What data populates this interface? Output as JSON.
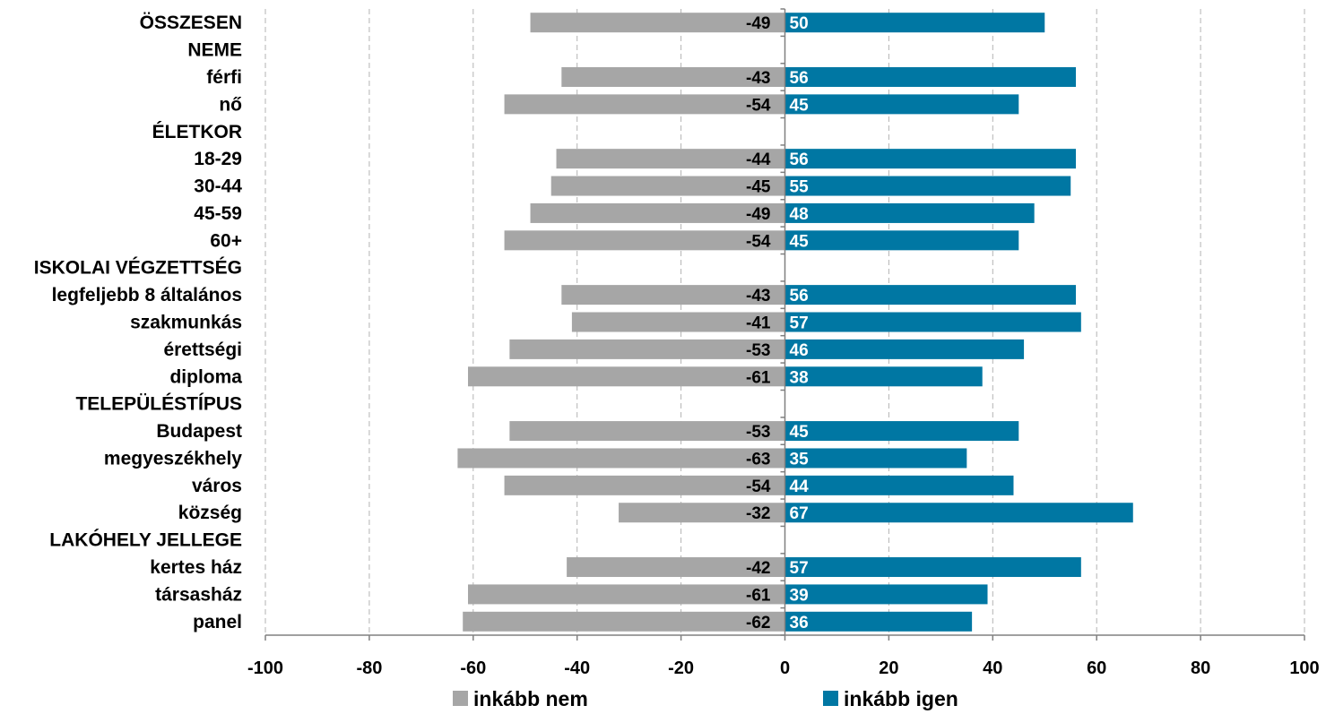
{
  "chart_data": {
    "type": "bar",
    "orientation": "horizontal",
    "categories": [
      "ÖSSZESEN",
      "NEME",
      "férfi",
      "nő",
      "ÉLETKOR",
      "18-29",
      "30-44",
      "45-59",
      "60+",
      "ISKOLAI VÉGZETTSÉG",
      "legfeljebb 8 általános",
      "szakmunkás",
      "érettségi",
      "diploma",
      "TELEPÜLÉSTÍPUS",
      "Budapest",
      "megyeszékhely",
      "város",
      "község",
      "LAKÓHELY JELLEGE",
      "kertes ház",
      "társasház",
      "panel"
    ],
    "series": [
      {
        "name": "inkább nem",
        "color": "#a6a6a6",
        "values": [
          -49,
          null,
          -43,
          -54,
          null,
          -44,
          -45,
          -49,
          -54,
          null,
          -43,
          -41,
          -53,
          -61,
          null,
          -53,
          -63,
          -54,
          -32,
          null,
          -42,
          -61,
          -62
        ]
      },
      {
        "name": "inkább igen",
        "color": "#0077a3",
        "values": [
          50,
          null,
          56,
          45,
          null,
          56,
          55,
          48,
          45,
          null,
          56,
          57,
          46,
          38,
          null,
          45,
          35,
          44,
          67,
          null,
          57,
          39,
          36
        ]
      }
    ],
    "xlim": [
      -100,
      100
    ],
    "xticks": [
      -100,
      -80,
      -60,
      -40,
      -20,
      0,
      20,
      40,
      60,
      80,
      100
    ],
    "grid": true,
    "legend_position": "bottom",
    "title": "",
    "xlabel": "",
    "ylabel": ""
  }
}
